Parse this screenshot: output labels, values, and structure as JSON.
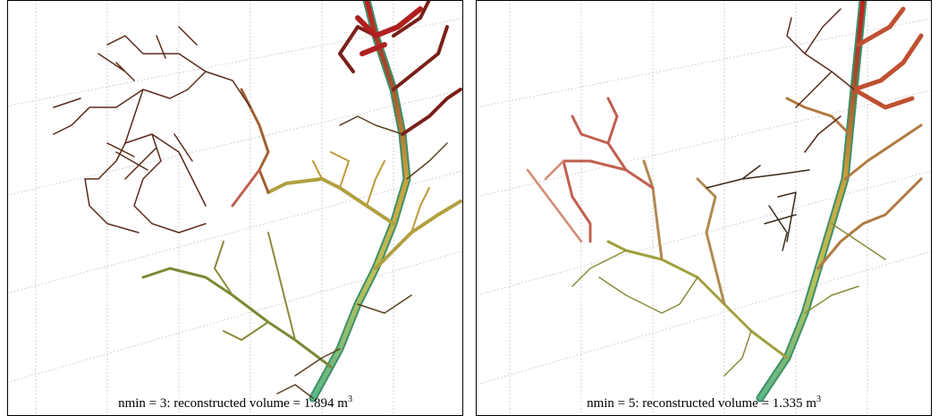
{
  "panels": [
    {
      "caption": "nmin = 3: reconstructed volume = 1.894 m",
      "caption_exponent": "3"
    },
    {
      "caption": "nmin = 5: reconstructed volume = 1.335 m",
      "caption_exponent": "3"
    }
  ]
}
